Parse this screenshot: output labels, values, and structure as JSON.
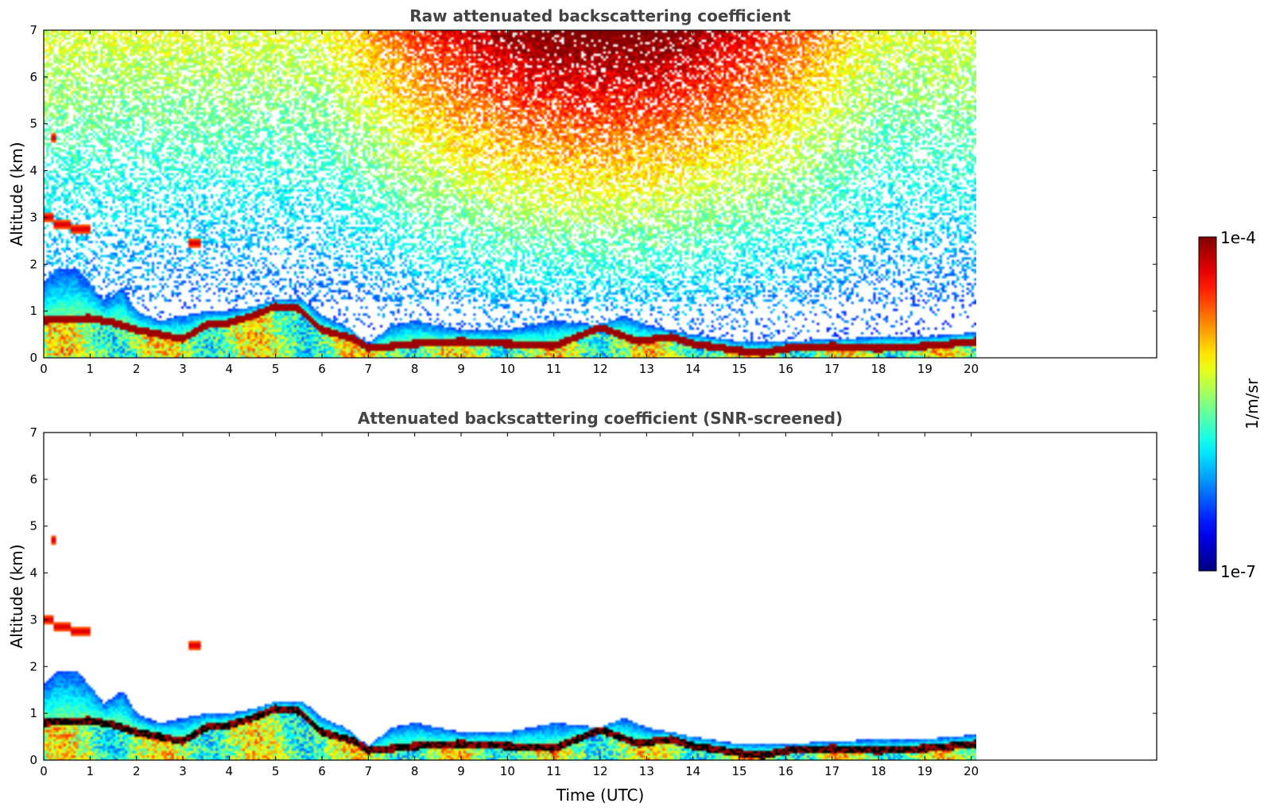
{
  "chart_data": [
    {
      "type": "heatmap",
      "title": "Raw attenuated backscattering coefficient",
      "xlabel": "",
      "ylabel": "Altitude (km)",
      "xlim": [
        0,
        24
      ],
      "ylim": [
        0,
        7
      ],
      "xticks": [
        0,
        1,
        2,
        3,
        4,
        5,
        6,
        7,
        8,
        9,
        10,
        11,
        12,
        13,
        14,
        15,
        16,
        17,
        18,
        19,
        20
      ],
      "yticks": [
        0,
        1,
        2,
        3,
        4,
        5,
        6,
        7
      ],
      "data_extent_x": [
        0,
        20.1
      ],
      "noise_scale": 1,
      "layer_top_km": [
        [
          0,
          1.6
        ],
        [
          0.3,
          1.9
        ],
        [
          0.7,
          1.9
        ],
        [
          1.0,
          1.6
        ],
        [
          1.3,
          1.2
        ],
        [
          1.7,
          1.5
        ],
        [
          2.0,
          1.0
        ],
        [
          2.5,
          0.8
        ],
        [
          3.0,
          0.9
        ],
        [
          3.5,
          1.0
        ],
        [
          4.0,
          1.0
        ],
        [
          4.5,
          1.1
        ],
        [
          5.0,
          1.25
        ],
        [
          5.6,
          1.25
        ],
        [
          6.0,
          0.9
        ],
        [
          6.5,
          0.7
        ],
        [
          7.0,
          0.3
        ],
        [
          7.5,
          0.7
        ],
        [
          8.0,
          0.8
        ],
        [
          9.0,
          0.6
        ],
        [
          10.0,
          0.6
        ],
        [
          11.0,
          0.8
        ],
        [
          12.0,
          0.7
        ],
        [
          12.5,
          0.9
        ],
        [
          13.0,
          0.7
        ],
        [
          14.0,
          0.5
        ],
        [
          15.0,
          0.35
        ],
        [
          16.0,
          0.35
        ],
        [
          17.0,
          0.4
        ],
        [
          18.0,
          0.45
        ],
        [
          19.0,
          0.45
        ],
        [
          20.1,
          0.55
        ]
      ],
      "elevated_layers": [
        {
          "x0": 0.0,
          "x1": 0.2,
          "alt": 3.0
        },
        {
          "x0": 0.2,
          "x1": 0.6,
          "alt": 2.85
        },
        {
          "x0": 0.6,
          "x1": 1.0,
          "alt": 2.75
        },
        {
          "x0": 3.1,
          "x1": 3.4,
          "alt": 2.45
        },
        {
          "x0": 0.15,
          "x1": 0.25,
          "alt": 4.7
        }
      ],
      "boundary_layer_km": [
        [
          0,
          0.8
        ],
        [
          1.0,
          0.85
        ],
        [
          1.5,
          0.75
        ],
        [
          2.0,
          0.6
        ],
        [
          3.0,
          0.4
        ],
        [
          3.5,
          0.7
        ],
        [
          4.0,
          0.75
        ],
        [
          4.5,
          0.9
        ],
        [
          5.0,
          1.1
        ],
        [
          5.5,
          1.05
        ],
        [
          6.0,
          0.6
        ],
        [
          6.7,
          0.4
        ],
        [
          7.0,
          0.2
        ],
        [
          8.0,
          0.3
        ],
        [
          9.0,
          0.35
        ],
        [
          10.0,
          0.3
        ],
        [
          11.0,
          0.25
        ],
        [
          12.0,
          0.65
        ],
        [
          12.8,
          0.35
        ],
        [
          13.5,
          0.45
        ],
        [
          14.0,
          0.3
        ],
        [
          15.0,
          0.15
        ],
        [
          15.5,
          0.1
        ],
        [
          16.0,
          0.2
        ],
        [
          17.0,
          0.25
        ],
        [
          18.0,
          0.2
        ],
        [
          19.0,
          0.25
        ],
        [
          20.1,
          0.35
        ]
      ],
      "colorscale": "jet",
      "colorbar": {
        "min_label": "1e-7",
        "max_label": "1e-4",
        "label": "1/m/sr"
      }
    },
    {
      "type": "heatmap",
      "title": "Attenuated backscattering coefficient (SNR-screened)",
      "xlabel": "Time (UTC)",
      "ylabel": "Altitude (km)",
      "xlim": [
        0,
        24
      ],
      "ylim": [
        0,
        7
      ],
      "xticks": [
        0,
        1,
        2,
        3,
        4,
        5,
        6,
        7,
        8,
        9,
        10,
        11,
        12,
        13,
        14,
        15,
        16,
        17,
        18,
        19,
        20
      ],
      "yticks": [
        0,
        1,
        2,
        3,
        4,
        5,
        6,
        7
      ],
      "data_extent_x": [
        0,
        20.1
      ],
      "noise_scale": 0,
      "layer_top_km": [
        [
          0,
          1.6
        ],
        [
          0.3,
          1.9
        ],
        [
          0.7,
          1.9
        ],
        [
          1.0,
          1.6
        ],
        [
          1.3,
          1.2
        ],
        [
          1.7,
          1.5
        ],
        [
          2.0,
          1.0
        ],
        [
          2.5,
          0.8
        ],
        [
          3.0,
          0.9
        ],
        [
          3.5,
          1.0
        ],
        [
          4.0,
          1.0
        ],
        [
          4.5,
          1.1
        ],
        [
          5.0,
          1.25
        ],
        [
          5.6,
          1.25
        ],
        [
          6.0,
          0.9
        ],
        [
          6.5,
          0.7
        ],
        [
          7.0,
          0.3
        ],
        [
          7.5,
          0.7
        ],
        [
          8.0,
          0.8
        ],
        [
          9.0,
          0.6
        ],
        [
          10.0,
          0.6
        ],
        [
          11.0,
          0.8
        ],
        [
          12.0,
          0.7
        ],
        [
          12.5,
          0.9
        ],
        [
          13.0,
          0.7
        ],
        [
          14.0,
          0.5
        ],
        [
          15.0,
          0.35
        ],
        [
          16.0,
          0.35
        ],
        [
          17.0,
          0.4
        ],
        [
          18.0,
          0.45
        ],
        [
          19.0,
          0.45
        ],
        [
          20.1,
          0.55
        ]
      ],
      "elevated_layers": [
        {
          "x0": 0.0,
          "x1": 0.2,
          "alt": 3.0
        },
        {
          "x0": 0.2,
          "x1": 0.6,
          "alt": 2.85
        },
        {
          "x0": 0.6,
          "x1": 1.0,
          "alt": 2.75
        },
        {
          "x0": 3.1,
          "x1": 3.4,
          "alt": 2.45
        },
        {
          "x0": 0.15,
          "x1": 0.25,
          "alt": 4.7
        }
      ],
      "boundary_layer_km": [
        [
          0,
          0.8
        ],
        [
          1.0,
          0.85
        ],
        [
          1.5,
          0.75
        ],
        [
          2.0,
          0.6
        ],
        [
          3.0,
          0.4
        ],
        [
          3.5,
          0.7
        ],
        [
          4.0,
          0.75
        ],
        [
          4.5,
          0.9
        ],
        [
          5.0,
          1.1
        ],
        [
          5.5,
          1.05
        ],
        [
          6.0,
          0.6
        ],
        [
          6.7,
          0.4
        ],
        [
          7.0,
          0.2
        ],
        [
          8.0,
          0.3
        ],
        [
          9.0,
          0.35
        ],
        [
          10.0,
          0.3
        ],
        [
          11.0,
          0.25
        ],
        [
          12.0,
          0.65
        ],
        [
          12.8,
          0.35
        ],
        [
          13.5,
          0.45
        ],
        [
          14.0,
          0.3
        ],
        [
          15.0,
          0.15
        ],
        [
          15.5,
          0.1
        ],
        [
          16.0,
          0.2
        ],
        [
          17.0,
          0.25
        ],
        [
          18.0,
          0.2
        ],
        [
          19.0,
          0.25
        ],
        [
          20.1,
          0.35
        ]
      ],
      "colorscale": "jet",
      "colorbar": {
        "min_label": "1e-7",
        "max_label": "1e-4",
        "label": "1/m/sr"
      }
    }
  ],
  "colorbar": {
    "min_label": "1e-7",
    "max_label": "1e-4",
    "label": "1/m/sr"
  }
}
